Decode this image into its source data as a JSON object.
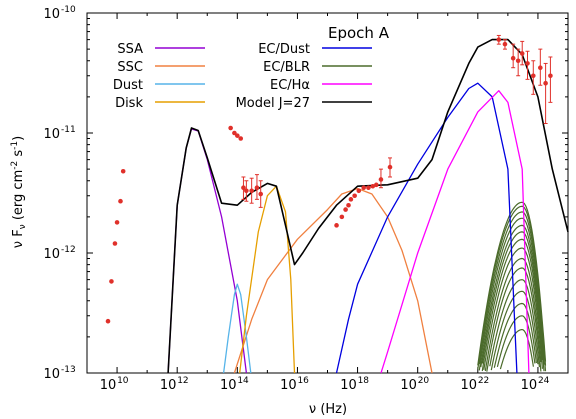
{
  "chart_data": {
    "type": "line",
    "title": "Epoch A",
    "xlabel": "ν (Hz)",
    "ylabel_parts": [
      "ν F",
      "ν",
      " (erg cm",
      "-2",
      " s",
      "-1",
      ")"
    ],
    "x_scale": "log",
    "y_scale": "log",
    "xlim": [
      1000000000.0,
      1e+25
    ],
    "ylim": [
      1e-13,
      1e-10
    ],
    "x_ticks": [
      {
        "base": "10",
        "exp": "10",
        "value": 10000000000.0
      },
      {
        "base": "10",
        "exp": "12",
        "value": 1000000000000.0
      },
      {
        "base": "10",
        "exp": "14",
        "value": 100000000000000.0
      },
      {
        "base": "10",
        "exp": "16",
        "value": 1e+16
      },
      {
        "base": "10",
        "exp": "18",
        "value": 1e+18
      },
      {
        "base": "10",
        "exp": "20",
        "value": 1e+20
      },
      {
        "base": "10",
        "exp": "22",
        "value": 1e+22
      },
      {
        "base": "10",
        "exp": "24",
        "value": 1e+24
      }
    ],
    "y_ticks": [
      {
        "base": "10",
        "exp": "-13",
        "value": 1e-13
      },
      {
        "base": "10",
        "exp": "-12",
        "value": 1e-12
      },
      {
        "base": "10",
        "exp": "-11",
        "value": 1e-11
      },
      {
        "base": "10",
        "exp": "-10",
        "value": 1e-10
      }
    ],
    "legend_placement": "top",
    "series": [
      {
        "name": "SSA",
        "color": "#9400d3",
        "points": [
          [
            500000000000.0,
            1e-13
          ],
          [
            1000000000000.0,
            2.5e-12
          ],
          [
            2000000000000.0,
            7.5e-12
          ],
          [
            3000000000000.0,
            1.08e-11
          ],
          [
            5000000000000.0,
            1.04e-11
          ],
          [
            10000000000000.0,
            6e-12
          ],
          [
            30000000000000.0,
            2e-12
          ],
          [
            100000000000000.0,
            4e-13
          ],
          [
            200000000000000.0,
            1e-13
          ]
        ]
      },
      {
        "name": "SSC",
        "color": "#f08040",
        "points": [
          [
            80000000000000.0,
            1e-13
          ],
          [
            300000000000000.0,
            2.8e-13
          ],
          [
            1000000000000000.0,
            6e-13
          ],
          [
            1e+16,
            1.3e-12
          ],
          [
            1e+17,
            2.3e-12
          ],
          [
            3e+17,
            3.1e-12
          ],
          [
            1e+18,
            3.45e-12
          ],
          [
            3e+18,
            3.1e-12
          ],
          [
            1e+19,
            2e-12
          ],
          [
            3e+19,
            1.05e-12
          ],
          [
            1e+20,
            4e-13
          ],
          [
            3e+20,
            1e-13
          ]
        ]
      },
      {
        "name": "Dust",
        "color": "#56b4e9",
        "points": [
          [
            35000000000000.0,
            1e-13
          ],
          [
            50000000000000.0,
            2e-13
          ],
          [
            80000000000000.0,
            4.5e-13
          ],
          [
            100000000000000.0,
            5.5e-13
          ],
          [
            130000000000000.0,
            4.5e-13
          ],
          [
            200000000000000.0,
            2e-13
          ],
          [
            280000000000000.0,
            1e-13
          ]
        ]
      },
      {
        "name": "Disk",
        "color": "#e69f00",
        "points": [
          [
            120000000000000.0,
            1e-13
          ],
          [
            200000000000000.0,
            3e-13
          ],
          [
            500000000000000.0,
            1.5e-12
          ],
          [
            1000000000000000.0,
            3e-12
          ],
          [
            2000000000000000.0,
            3.6e-12
          ],
          [
            4000000000000000.0,
            2.2e-12
          ],
          [
            6000000000000000.0,
            6e-13
          ],
          [
            8000000000000000.0,
            1e-13
          ]
        ]
      },
      {
        "name": "EC/Dust",
        "color": "#0000e0",
        "points": [
          [
            2e+17,
            1e-13
          ],
          [
            5e+17,
            2.8e-13
          ],
          [
            1e+18,
            5.5e-13
          ],
          [
            1e+19,
            2e-12
          ],
          [
            1e+20,
            5.5e-12
          ],
          [
            1e+21,
            1.35e-11
          ],
          [
            5e+21,
            2.35e-11
          ],
          [
            1e+22,
            2.6e-11
          ],
          [
            3e+22,
            2e-11
          ],
          [
            1e+23,
            5e-12
          ],
          [
            2e+23,
            1e-13
          ]
        ]
      },
      {
        "name": "EC/BLR",
        "color": "#4b6b2b",
        "points": [
          [
            2e+21,
            1e-13
          ],
          [
            5e+21,
            3e-13
          ],
          [
            1e+22,
            7e-13
          ],
          [
            3e+22,
            1.6e-12
          ],
          [
            1e+23,
            2.4e-12
          ],
          [
            3e+23,
            2.65e-12
          ],
          [
            1e+24,
            2.2e-12
          ],
          [
            3e+24,
            1e-12
          ],
          [
            6e+24,
            1e-13
          ]
        ]
      },
      {
        "name": "EC/Hα",
        "color": "#ff00ff",
        "points": [
          [
            6e+18,
            1e-13
          ],
          [
            1e+19,
            1.5e-13
          ],
          [
            1e+20,
            1e-12
          ],
          [
            1e+21,
            5e-12
          ],
          [
            1e+22,
            1.5e-11
          ],
          [
            5e+22,
            2.25e-11
          ],
          [
            1e+23,
            1.8e-11
          ],
          [
            3e+23,
            5e-12
          ],
          [
            5e+23,
            1e-13
          ]
        ]
      },
      {
        "name": "Model J=27",
        "color": "#000000",
        "points": [
          [
            500000000000.0,
            1e-13
          ],
          [
            1000000000000.0,
            2.5e-12
          ],
          [
            2000000000000.0,
            7.5e-12
          ],
          [
            3000000000000.0,
            1.1e-11
          ],
          [
            5000000000000.0,
            1.05e-11
          ],
          [
            10000000000000.0,
            6.2e-12
          ],
          [
            30000000000000.0,
            2.6e-12
          ],
          [
            100000000000000.0,
            2.5e-12
          ],
          [
            300000000000000.0,
            3.2e-12
          ],
          [
            1000000000000000.0,
            3.8e-12
          ],
          [
            2000000000000000.0,
            3.6e-12
          ],
          [
            4000000000000000.0,
            1.7e-12
          ],
          [
            8000000000000000.0,
            8e-13
          ],
          [
            1.5e+16,
            1e-12
          ],
          [
            5e+16,
            1.6e-12
          ],
          [
            2e+17,
            2.5e-12
          ],
          [
            1e+18,
            3.6e-12
          ],
          [
            1e+19,
            3.7e-12
          ],
          [
            1e+20,
            4.2e-12
          ],
          [
            3e+20,
            6e-12
          ],
          [
            1e+21,
            1.5e-11
          ],
          [
            5e+21,
            3.8e-11
          ],
          [
            1e+22,
            5.2e-11
          ],
          [
            3e+22,
            6e-11
          ],
          [
            1e+23,
            6e-11
          ],
          [
            3e+23,
            4.5e-11
          ],
          [
            1e+24,
            2e-11
          ],
          [
            3e+24,
            5e-12
          ],
          [
            1e+25,
            1.5e-12
          ]
        ]
      }
    ],
    "ec_blr_curves": [
      {
        "peak_x": 3e+23,
        "peak_y": 2.65e-12
      },
      {
        "peak_x": 3e+23,
        "peak_y": 2.45e-12
      },
      {
        "peak_x": 3e+23,
        "peak_y": 2.2e-12
      },
      {
        "peak_x": 3e+23,
        "peak_y": 1.95e-12
      },
      {
        "peak_x": 3e+23,
        "peak_y": 1.7e-12
      },
      {
        "peak_x": 3e+23,
        "peak_y": 1.5e-12
      },
      {
        "peak_x": 3e+23,
        "peak_y": 1.3e-12
      },
      {
        "peak_x": 3e+23,
        "peak_y": 1.1e-12
      },
      {
        "peak_x": 3e+23,
        "peak_y": 9e-13
      },
      {
        "peak_x": 3e+23,
        "peak_y": 7.5e-13
      },
      {
        "peak_x": 3e+23,
        "peak_y": 6e-13
      },
      {
        "peak_x": 3e+23,
        "peak_y": 4.8e-13
      },
      {
        "peak_x": 3e+23,
        "peak_y": 3.8e-13
      },
      {
        "peak_x": 3e+23,
        "peak_y": 3e-13
      },
      {
        "peak_x": 3e+23,
        "peak_y": 2.3e-13
      }
    ],
    "data_points_color": "#e0302a",
    "data_points": [
      {
        "x": 5000000000.0,
        "y": 2.7e-13
      },
      {
        "x": 6500000000.0,
        "y": 5.8e-13
      },
      {
        "x": 8500000000.0,
        "y": 1.2e-12
      },
      {
        "x": 10000000000.0,
        "y": 1.8e-12
      },
      {
        "x": 13000000000.0,
        "y": 2.7e-12
      },
      {
        "x": 16000000000.0,
        "y": 4.8e-12
      },
      {
        "x": 60000000000000.0,
        "y": 1.1e-11
      },
      {
        "x": 80000000000000.0,
        "y": 1e-11
      },
      {
        "x": 100000000000000.0,
        "y": 9.5e-12
      },
      {
        "x": 130000000000000.0,
        "y": 9e-12
      },
      {
        "x": 160000000000000.0,
        "y": 3.5e-12,
        "yerr": [
          2.8e-12,
          4.3e-12
        ]
      },
      {
        "x": 200000000000000.0,
        "y": 3.3e-12,
        "yerr": [
          2.7e-12,
          4e-12
        ]
      },
      {
        "x": 300000000000000.0,
        "y": 3.3e-12,
        "yerr": [
          2.6e-12,
          4.2e-12
        ]
      },
      {
        "x": 450000000000000.0,
        "y": 3.5e-12,
        "yerr": [
          2.8e-12,
          4.5e-12
        ]
      },
      {
        "x": 600000000000000.0,
        "y": 3.1e-12,
        "yerr": [
          2.4e-12,
          4e-12
        ]
      },
      {
        "x": 2e+17,
        "y": 1.7e-12
      },
      {
        "x": 3e+17,
        "y": 2e-12
      },
      {
        "x": 4e+17,
        "y": 2.3e-12
      },
      {
        "x": 5e+17,
        "y": 2.5e-12
      },
      {
        "x": 6e+17,
        "y": 2.8e-12
      },
      {
        "x": 8e+17,
        "y": 3e-12
      },
      {
        "x": 1.1e+18,
        "y": 3.3e-12
      },
      {
        "x": 1.6e+18,
        "y": 3.5e-12
      },
      {
        "x": 2.3e+18,
        "y": 3.5e-12
      },
      {
        "x": 3.2e+18,
        "y": 3.6e-12
      },
      {
        "x": 4.2e+18,
        "y": 3.7e-12
      },
      {
        "x": 6e+18,
        "y": 4.1e-12,
        "yerr": [
          3.5e-12,
          5e-12
        ]
      },
      {
        "x": 1.2e+19,
        "y": 5.2e-12,
        "yerr": [
          4.3e-12,
          6.2e-12
        ]
      },
      {
        "x": 5e+22,
        "y": 6e-11,
        "yerr": [
          5.5e-11,
          6.5e-11
        ]
      },
      {
        "x": 8e+22,
        "y": 5.5e-11,
        "yerr": [
          5e-11,
          6e-11
        ]
      },
      {
        "x": 1.5e+23,
        "y": 4.2e-11,
        "yerr": [
          3.5e-11,
          5.5e-11
        ]
      },
      {
        "x": 2.2e+23,
        "y": 4e-11,
        "yerr": [
          3e-11,
          5e-11
        ]
      },
      {
        "x": 3e+23,
        "y": 4.6e-11,
        "yerr": [
          3.7e-11,
          5.8e-11
        ]
      },
      {
        "x": 4.5e+23,
        "y": 3.8e-11,
        "yerr": [
          2.8e-11,
          4.8e-11
        ]
      },
      {
        "x": 7e+23,
        "y": 3e-11,
        "yerr": [
          2.1e-11,
          4e-11
        ]
      },
      {
        "x": 1.2e+24,
        "y": 3.5e-11,
        "yerr": [
          2.5e-11,
          5e-11
        ]
      },
      {
        "x": 1.8e+24,
        "y": 2.6e-11,
        "yerr": [
          1.2e-11,
          3.8e-11
        ]
      },
      {
        "x": 2.6e+24,
        "y": 3e-11,
        "yerr": [
          1.8e-11,
          4.3e-11
        ]
      }
    ]
  }
}
